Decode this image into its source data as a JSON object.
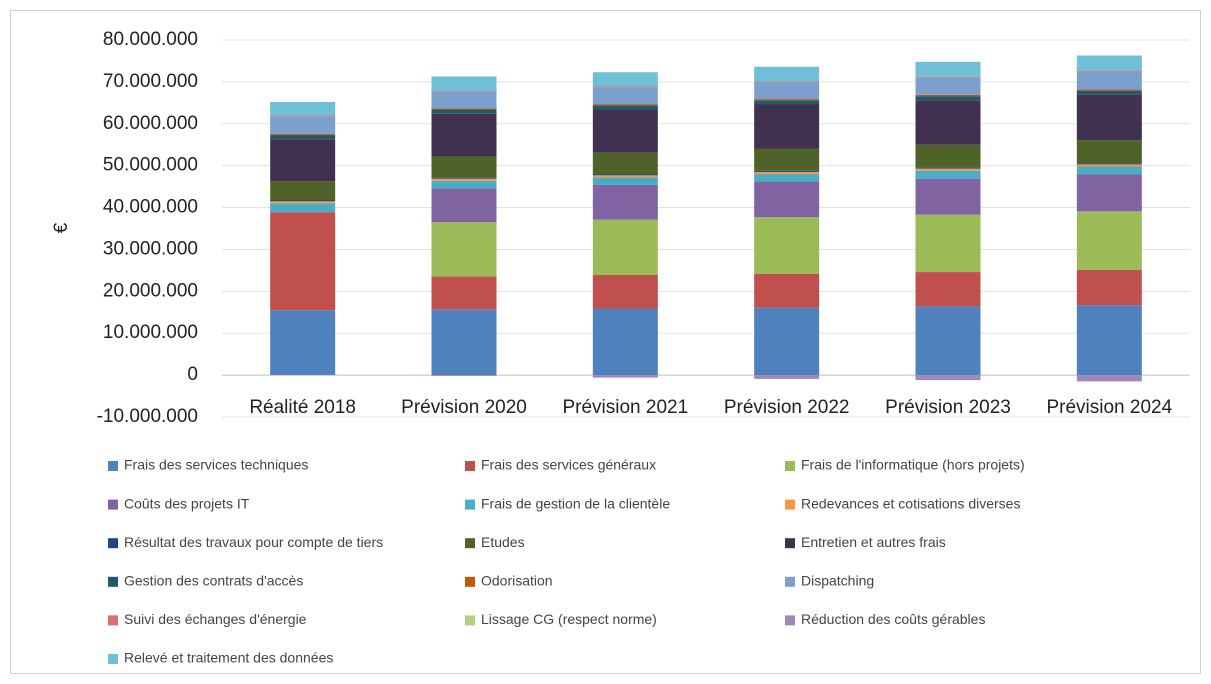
{
  "chart_data": {
    "type": "stacked_bar",
    "y_label": "€",
    "categories": [
      "Réalité 2018",
      "Prévision 2020",
      "Prévision 2021",
      "Prévision 2022",
      "Prévision 2023",
      "Prévision 2024"
    ],
    "ylim": [
      -10000000,
      80000000
    ],
    "yticks": [
      {
        "value": -10000000,
        "label": "-10.000.000"
      },
      0,
      {
        "value": 10000000,
        "label": "10.000.000"
      },
      {
        "value": 20000000,
        "label": "20.000.000"
      },
      {
        "value": 30000000,
        "label": "30.000.000"
      },
      {
        "value": 40000000,
        "label": "40.000.000"
      },
      {
        "value": 50000000,
        "label": "50.000.000"
      },
      {
        "value": 60000000,
        "label": "60.000.000"
      },
      {
        "value": 70000000,
        "label": "70.000.000"
      },
      {
        "value": 80000000,
        "label": "80.000.000"
      }
    ],
    "grid": true,
    "legend": "bottom",
    "series": [
      {
        "name": "Frais des services techniques",
        "color": "#4f81bd",
        "values": [
          15500000,
          15700000,
          15900000,
          16100000,
          16400000,
          16700000
        ]
      },
      {
        "name": "Frais des services généraux",
        "color": "#c0504d",
        "values": [
          23400000,
          7900000,
          8000000,
          8100000,
          8200000,
          8400000
        ]
      },
      {
        "name": "Frais de l'informatique (hors projets)",
        "color": "#9bbb59",
        "values": [
          0,
          12900000,
          13200000,
          13500000,
          13700000,
          14000000
        ]
      },
      {
        "name": "Coûts des projets IT",
        "color": "#8064a2",
        "values": [
          0,
          8100000,
          8300000,
          8500000,
          8600000,
          8800000
        ]
      },
      {
        "name": "Frais de gestion de la clientèle",
        "color": "#4bacc6",
        "values": [
          2100000,
          1800000,
          1800000,
          1800000,
          1900000,
          1900000
        ]
      },
      {
        "name": "Redevances et cotisations diverses",
        "color": "#f79646",
        "values": [
          500000,
          500000,
          500000,
          500000,
          500000,
          500000
        ]
      },
      {
        "name": "Résultat des travaux pour compte de tiers",
        "color": "#1f497d",
        "values": [
          300000,
          300000,
          300000,
          300000,
          300000,
          300000
        ]
      },
      {
        "name": "Etudes",
        "color": "#4f6228",
        "values": [
          4500000,
          5000000,
          5100000,
          5300000,
          5400000,
          5500000
        ]
      },
      {
        "name": "Entretien et autres frais",
        "color": "#403151",
        "values": [
          10000000,
          10200000,
          10300000,
          10500000,
          10600000,
          10800000
        ]
      },
      {
        "name": "Gestion des contrats d'accès",
        "color": "#215968",
        "values": [
          1000000,
          1000000,
          1000000,
          1000000,
          1000000,
          1000000
        ]
      },
      {
        "name": "Odorisation",
        "color": "#c0590a",
        "values": [
          300000,
          300000,
          300000,
          300000,
          300000,
          300000
        ]
      },
      {
        "name": "Dispatching",
        "color": "#7ba0cd",
        "values": [
          4200000,
          3900000,
          4000000,
          4000000,
          4100000,
          4200000
        ]
      },
      {
        "name": "Suivi des échanges d'énergie",
        "color": "#d9716f",
        "values": [
          200000,
          200000,
          200000,
          200000,
          200000,
          200000
        ]
      },
      {
        "name": "Lissage CG (respect norme)",
        "color": "#b4cf7f",
        "values": [
          0,
          0,
          0,
          0,
          0,
          0
        ]
      },
      {
        "name": "Réduction des coûts gérables",
        "color": "#9f87b9",
        "values": [
          0,
          -200000,
          -600000,
          -900000,
          -1200000,
          -1500000
        ]
      },
      {
        "name": "Relevé et traitement des données",
        "color": "#6fc0d6",
        "values": [
          3200000,
          3500000,
          3400000,
          3500000,
          3600000,
          3700000
        ]
      }
    ]
  }
}
